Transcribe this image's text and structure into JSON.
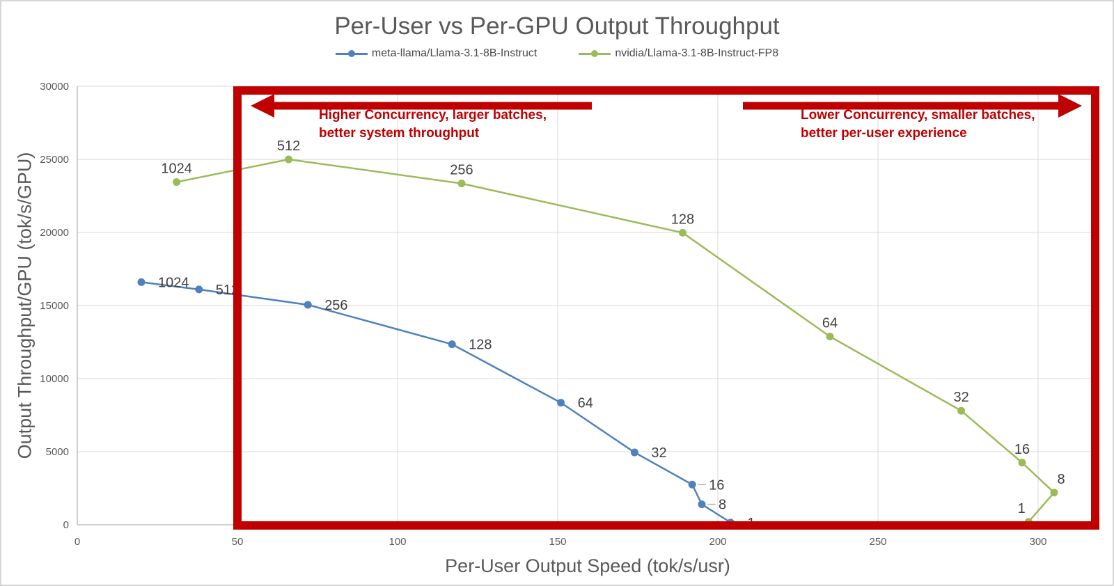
{
  "chart_data": {
    "type": "line",
    "title": "Per-User vs Per-GPU Output Throughput",
    "xlabel": "Per-User Output Speed (tok/s/usr)",
    "ylabel": "Output Throughput/GPU (tok/s/GPU)",
    "xlim": [
      0,
      320
    ],
    "ylim": [
      0,
      30000
    ],
    "x_ticks": [
      0,
      50,
      100,
      150,
      200,
      250,
      300
    ],
    "y_ticks": [
      0,
      5000,
      10000,
      15000,
      20000,
      25000,
      30000
    ],
    "grid": true,
    "legend_position": "top-center",
    "point_labels_meaning": "concurrency",
    "series": [
      {
        "name": "meta-llama/Llama-3.1-8B-Instruct",
        "color": "#4f81bd",
        "points": [
          {
            "label": "1024",
            "x": 20,
            "y": 16600
          },
          {
            "label": "512",
            "x": 38,
            "y": 16100
          },
          {
            "label": "256",
            "x": 72,
            "y": 15050
          },
          {
            "label": "128",
            "x": 117,
            "y": 12350
          },
          {
            "label": "64",
            "x": 151,
            "y": 8350
          },
          {
            "label": "32",
            "x": 174,
            "y": 4950
          },
          {
            "label": "16",
            "x": 192,
            "y": 2750
          },
          {
            "label": "8",
            "x": 195,
            "y": 1400
          },
          {
            "label": "1",
            "x": 204,
            "y": 150
          }
        ]
      },
      {
        "name": "nvidia/Llama-3.1-8B-Instruct-FP8",
        "color": "#9bbb59",
        "points": [
          {
            "label": "1024",
            "x": 31,
            "y": 23450
          },
          {
            "label": "512",
            "x": 66,
            "y": 25000
          },
          {
            "label": "256",
            "x": 120,
            "y": 23350
          },
          {
            "label": "128",
            "x": 189,
            "y": 19980
          },
          {
            "label": "64",
            "x": 235,
            "y": 12880
          },
          {
            "label": "32",
            "x": 276,
            "y": 7800
          },
          {
            "label": "16",
            "x": 295,
            "y": 4250
          },
          {
            "label": "8",
            "x": 305,
            "y": 2200
          },
          {
            "label": "1",
            "x": 297,
            "y": 200
          }
        ]
      }
    ],
    "annotations": {
      "left": {
        "arrow": "left",
        "line1": "Higher Concurrency, larger batches,",
        "line2": "better system throughput"
      },
      "right": {
        "arrow": "right",
        "line1": "Lower Concurrency, smaller batches,",
        "line2": "better per-user experience"
      },
      "box": {
        "x_from": 50,
        "x_to": 320,
        "y_from": 0,
        "y_to": 30000
      }
    },
    "colors": {
      "series_blue": "#4f81bd",
      "series_green": "#9bbb59",
      "annotation_red": "#c00000",
      "gridline": "#d9d9d9",
      "axis_line": "#bfbfbf",
      "title_text": "#595959",
      "tick_text": "#595959",
      "data_label_text": "#3f3f3f"
    }
  }
}
